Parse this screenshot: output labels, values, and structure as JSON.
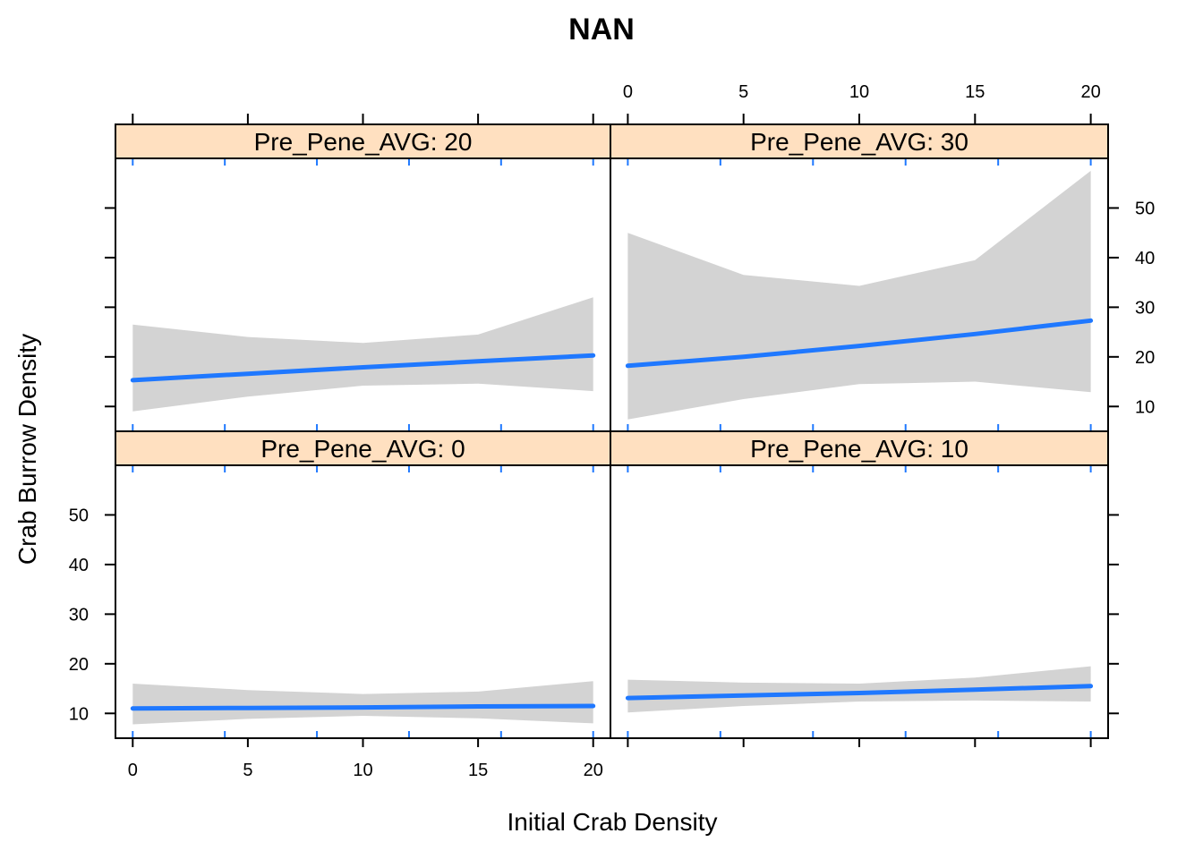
{
  "chart_data": {
    "type": "line",
    "title": "NAN",
    "xlabel": "Initial Crab Density",
    "ylabel": "Crab Burrow Density",
    "xlim": [
      -0.75,
      20.75
    ],
    "ylim": [
      5,
      60
    ],
    "x_ticks": [
      0,
      5,
      10,
      15,
      20
    ],
    "y_ticks": [
      10,
      20,
      30,
      40,
      50
    ],
    "x_rug": [
      0,
      4,
      8,
      12,
      16,
      20
    ],
    "layout": "2x2 panels; bottom row: Pre_Pene_AVG 0 and 10; top row: Pre_Pene_AVG 20 and 30",
    "colors": {
      "line": "#1f78ff",
      "band": "#d3d3d3",
      "strip": "#ffe0c0",
      "rug": "#1f78ff"
    },
    "panels": [
      {
        "label": "Pre_Pene_AVG: 20",
        "x": [
          0,
          5,
          10,
          15,
          20
        ],
        "fit": [
          15.3,
          16.6,
          17.9,
          19.1,
          20.3
        ],
        "lower": [
          9.0,
          12.0,
          14.2,
          14.6,
          13.1
        ],
        "upper": [
          26.5,
          24.0,
          22.8,
          24.5,
          32.0
        ]
      },
      {
        "label": "Pre_Pene_AVG: 30",
        "x": [
          0,
          5,
          10,
          15,
          20
        ],
        "fit": [
          18.2,
          20.0,
          22.2,
          24.6,
          27.3
        ],
        "lower": [
          7.4,
          11.5,
          14.5,
          15.0,
          12.9
        ],
        "upper": [
          45.0,
          36.5,
          34.3,
          39.5,
          57.5
        ]
      },
      {
        "label": "Pre_Pene_AVG: 0",
        "x": [
          0,
          5,
          10,
          15,
          20
        ],
        "fit": [
          11.0,
          11.1,
          11.2,
          11.4,
          11.5
        ],
        "lower": [
          7.8,
          8.9,
          9.5,
          9.0,
          8.0
        ],
        "upper": [
          16.0,
          14.7,
          13.9,
          14.4,
          16.5
        ]
      },
      {
        "label": "Pre_Pene_AVG: 10",
        "x": [
          0,
          5,
          10,
          15,
          20
        ],
        "fit": [
          13.1,
          13.6,
          14.1,
          14.8,
          15.5
        ],
        "lower": [
          10.2,
          11.5,
          12.4,
          12.6,
          12.4
        ],
        "upper": [
          16.8,
          16.2,
          16.0,
          17.2,
          19.5
        ]
      }
    ]
  }
}
